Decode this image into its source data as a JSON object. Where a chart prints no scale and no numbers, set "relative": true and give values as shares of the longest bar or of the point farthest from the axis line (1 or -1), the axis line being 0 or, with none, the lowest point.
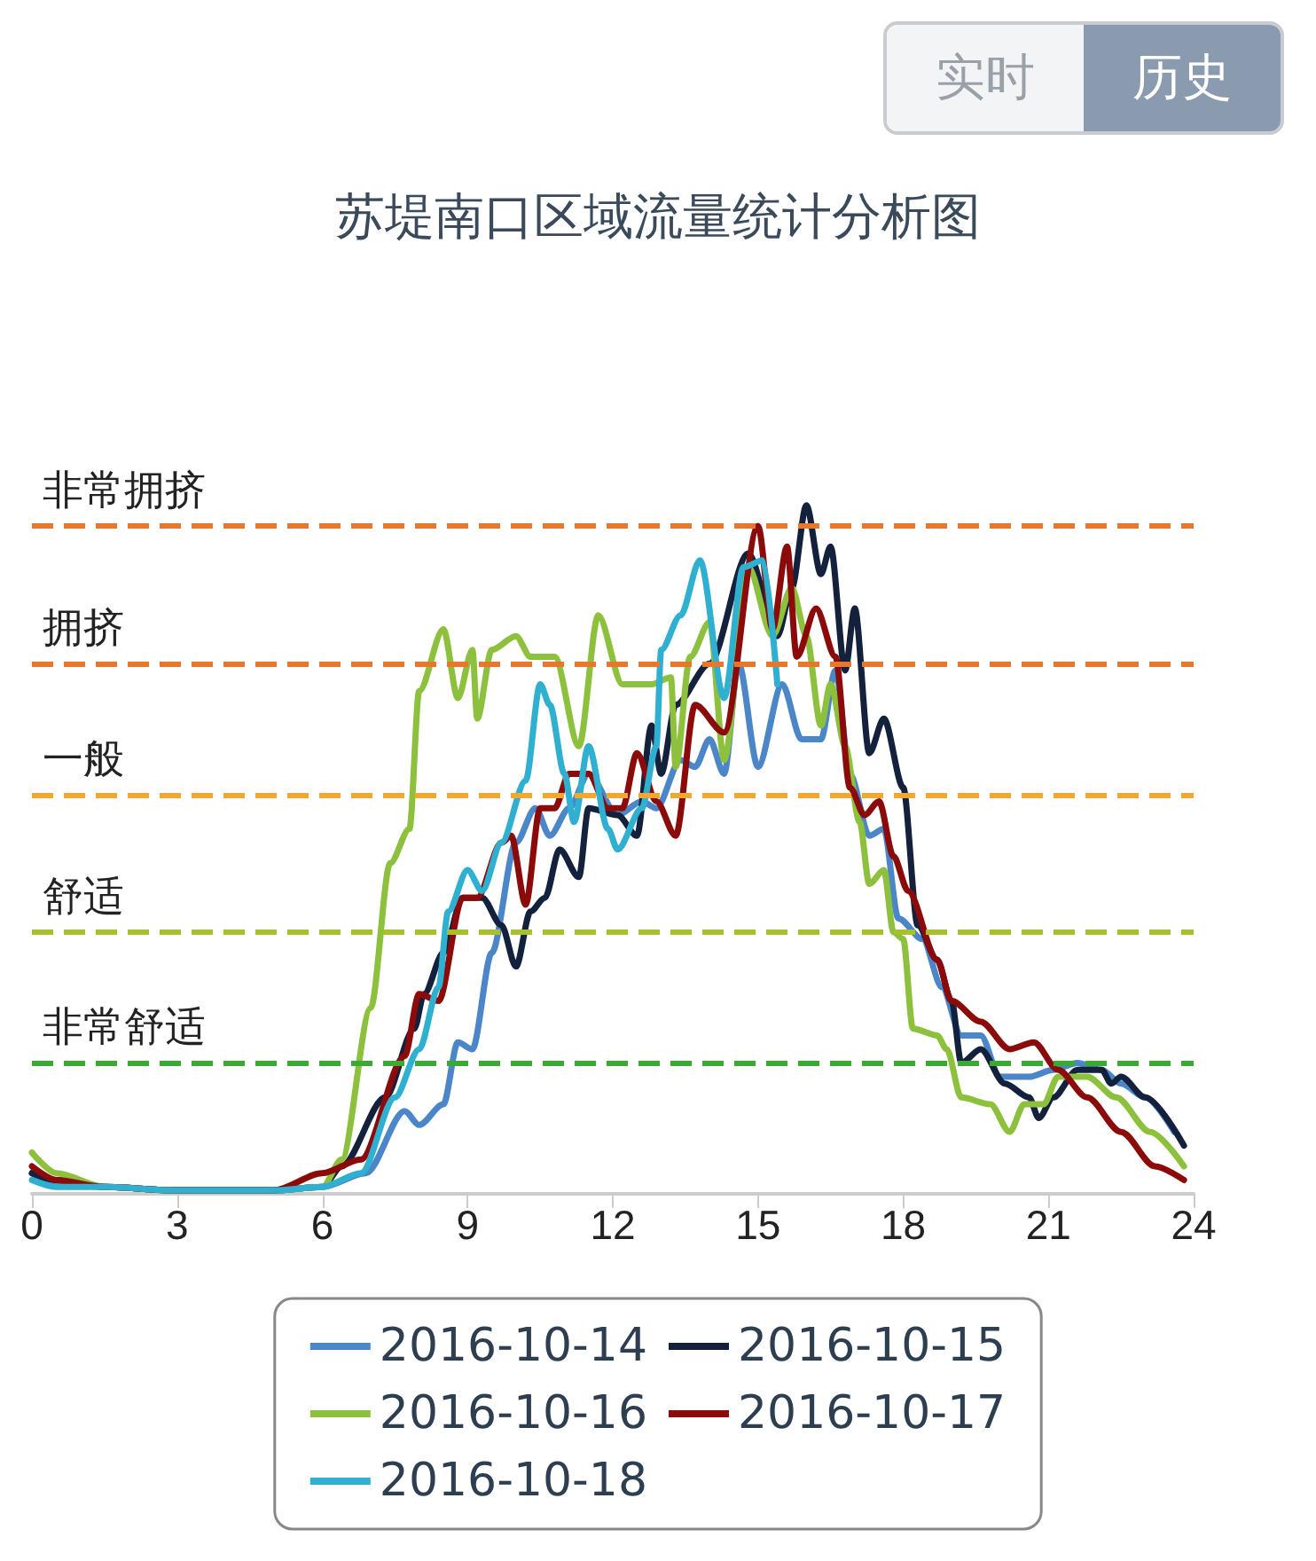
{
  "chart_data": {
    "type": "line",
    "title": "苏堤南口区域流量统计分析图",
    "annotations": [
      "实时",
      "历史"
    ],
    "relative": true,
    "xlim": [
      0,
      24
    ],
    "xticks": [
      0,
      3,
      6,
      9,
      12,
      15,
      18,
      21,
      24
    ],
    "grid": false,
    "legend": "bottom",
    "marker": "none",
    "line_style": "solid",
    "ref_lines": [
      {
        "axis": "y",
        "value": 0.97,
        "label": "非常拥挤",
        "color": "#e8772e",
        "line_style": "dashed"
      },
      {
        "axis": "y",
        "value": 0.77,
        "label": "拥挤",
        "color": "#e8772e",
        "line_style": "dashed"
      },
      {
        "axis": "y",
        "value": 0.58,
        "label": "一般",
        "color": "#f0a830",
        "line_style": "dashed"
      },
      {
        "axis": "y",
        "value": 0.38,
        "label": "舒适",
        "color": "#a8c030",
        "line_style": "dashed"
      },
      {
        "axis": "y",
        "value": 0.19,
        "label": "非常舒适",
        "color": "#3aaa35",
        "line_style": "dashed"
      }
    ],
    "series": [
      {
        "name": "2016-10-14",
        "color": "#4a86c8",
        "x": [
          0,
          0.5,
          1.5,
          3,
          5,
          6,
          6.9,
          7.7,
          8.0,
          8.5,
          8.8,
          9.1,
          9.5,
          10.0,
          10.4,
          10.7,
          11.1,
          11.5,
          12.1,
          12.6,
          12.9,
          13.4,
          13.7,
          14.0,
          14.3,
          14.6,
          15.0,
          15.5,
          15.9,
          16.3,
          16.6,
          16.9,
          17.3,
          17.6,
          17.9,
          18.4,
          18.8,
          19.2,
          19.6,
          20.0,
          20.6,
          21.1,
          21.6,
          22.1,
          22.5,
          23.0,
          23.6
        ],
        "values": [
          0.03,
          0.015,
          0.01,
          0.005,
          0.005,
          0.01,
          0.03,
          0.12,
          0.1,
          0.13,
          0.22,
          0.21,
          0.35,
          0.51,
          0.56,
          0.52,
          0.56,
          0.61,
          0.55,
          0.57,
          0.56,
          0.63,
          0.62,
          0.66,
          0.61,
          0.77,
          0.62,
          0.74,
          0.66,
          0.66,
          0.76,
          0.61,
          0.52,
          0.53,
          0.4,
          0.37,
          0.3,
          0.23,
          0.23,
          0.17,
          0.17,
          0.18,
          0.19,
          0.18,
          0.16,
          0.14,
          0.09
        ]
      },
      {
        "name": "2016-10-15",
        "color": "#14213d",
        "x": [
          0,
          0.5,
          1.5,
          3,
          5,
          6,
          6.4,
          7.3,
          7.9,
          8.1,
          8.5,
          8.9,
          9.3,
          9.7,
          10.0,
          10.3,
          10.6,
          10.9,
          11.3,
          11.5,
          12.1,
          12.5,
          12.8,
          13.0,
          13.3,
          14.0,
          14.8,
          15.4,
          15.7,
          16.0,
          16.3,
          16.5,
          16.8,
          17.0,
          17.3,
          17.6,
          18.0,
          18.3,
          18.7,
          19.0,
          19.2,
          19.6,
          20.1,
          20.6,
          20.8,
          21.1,
          21.6,
          22.1,
          22.3,
          22.5,
          23.0,
          23.8
        ],
        "values": [
          0.03,
          0.02,
          0.01,
          0.005,
          0.005,
          0.01,
          0.04,
          0.14,
          0.24,
          0.29,
          0.35,
          0.43,
          0.43,
          0.39,
          0.33,
          0.41,
          0.43,
          0.5,
          0.46,
          0.56,
          0.55,
          0.52,
          0.68,
          0.61,
          0.71,
          0.77,
          0.93,
          0.81,
          0.88,
          1.0,
          0.9,
          0.94,
          0.76,
          0.85,
          0.64,
          0.69,
          0.59,
          0.39,
          0.34,
          0.28,
          0.19,
          0.21,
          0.16,
          0.14,
          0.11,
          0.14,
          0.18,
          0.18,
          0.16,
          0.17,
          0.14,
          0.07
        ]
      },
      {
        "name": "2016-10-16",
        "color": "#8dc03c",
        "x": [
          0,
          0.5,
          1.5,
          3,
          5,
          6,
          6.4,
          7.0,
          7.4,
          7.8,
          8.0,
          8.5,
          8.8,
          9.1,
          9.2,
          9.5,
          10.0,
          10.3,
          10.8,
          11.3,
          11.7,
          12.2,
          12.8,
          13.2,
          13.3,
          13.6,
          14.0,
          14.3,
          14.8,
          15.3,
          15.7,
          16.0,
          16.3,
          16.5,
          16.8,
          17.1,
          17.3,
          17.6,
          17.8,
          18.0,
          18.2,
          18.7,
          18.9,
          19.2,
          19.8,
          20.2,
          20.5,
          20.9,
          21.2,
          21.8,
          22.4,
          23.1,
          23.8
        ],
        "values": [
          0.06,
          0.03,
          0.01,
          0.005,
          0.005,
          0.01,
          0.05,
          0.27,
          0.48,
          0.53,
          0.73,
          0.82,
          0.72,
          0.79,
          0.69,
          0.79,
          0.81,
          0.78,
          0.78,
          0.65,
          0.84,
          0.74,
          0.74,
          0.75,
          0.62,
          0.78,
          0.83,
          0.63,
          0.91,
          0.81,
          0.88,
          0.81,
          0.68,
          0.74,
          0.65,
          0.54,
          0.45,
          0.47,
          0.38,
          0.37,
          0.24,
          0.23,
          0.21,
          0.14,
          0.13,
          0.09,
          0.13,
          0.13,
          0.17,
          0.17,
          0.14,
          0.09,
          0.04
        ]
      },
      {
        "name": "2016-10-17",
        "color": "#8b0a0a",
        "x": [
          0,
          0.5,
          1.5,
          3,
          5,
          6.0,
          6.8,
          7.7,
          8.0,
          8.4,
          8.9,
          9.2,
          9.7,
          9.9,
          10.2,
          10.5,
          10.8,
          11.1,
          11.5,
          11.9,
          12.2,
          12.5,
          12.9,
          13.3,
          13.7,
          14.3,
          15.0,
          15.3,
          15.6,
          15.8,
          16.2,
          16.6,
          16.9,
          17.2,
          17.5,
          17.8,
          18.1,
          18.7,
          19.0,
          19.6,
          20.2,
          20.7,
          21.2,
          21.8,
          22.5,
          23.2,
          23.8
        ],
        "values": [
          0.04,
          0.02,
          0.01,
          0.005,
          0.005,
          0.03,
          0.05,
          0.2,
          0.29,
          0.28,
          0.43,
          0.43,
          0.51,
          0.52,
          0.42,
          0.56,
          0.56,
          0.61,
          0.61,
          0.56,
          0.56,
          0.64,
          0.57,
          0.52,
          0.71,
          0.67,
          0.97,
          0.82,
          0.94,
          0.78,
          0.85,
          0.78,
          0.59,
          0.55,
          0.57,
          0.49,
          0.44,
          0.34,
          0.28,
          0.25,
          0.21,
          0.22,
          0.18,
          0.14,
          0.09,
          0.04,
          0.02
        ]
      },
      {
        "name": "2016-10-18",
        "color": "#30b0d0",
        "x": [
          0,
          0.5,
          1.5,
          3,
          5,
          6,
          6.8,
          7.5,
          8.0,
          8.4,
          8.6,
          9.0,
          9.3,
          9.7,
          10.2,
          10.5,
          10.7,
          11.0,
          11.2,
          11.5,
          11.9,
          12.1,
          12.6,
          12.9,
          13.0,
          13.4,
          13.8,
          14.3,
          14.7,
          15.1,
          15.4
        ],
        "values": [
          0.02,
          0.01,
          0.01,
          0.005,
          0.005,
          0.01,
          0.03,
          0.14,
          0.21,
          0.3,
          0.41,
          0.47,
          0.44,
          0.51,
          0.6,
          0.74,
          0.71,
          0.61,
          0.54,
          0.65,
          0.53,
          0.5,
          0.56,
          0.65,
          0.79,
          0.84,
          0.92,
          0.72,
          0.91,
          0.92,
          0.74
        ]
      }
    ]
  }
}
